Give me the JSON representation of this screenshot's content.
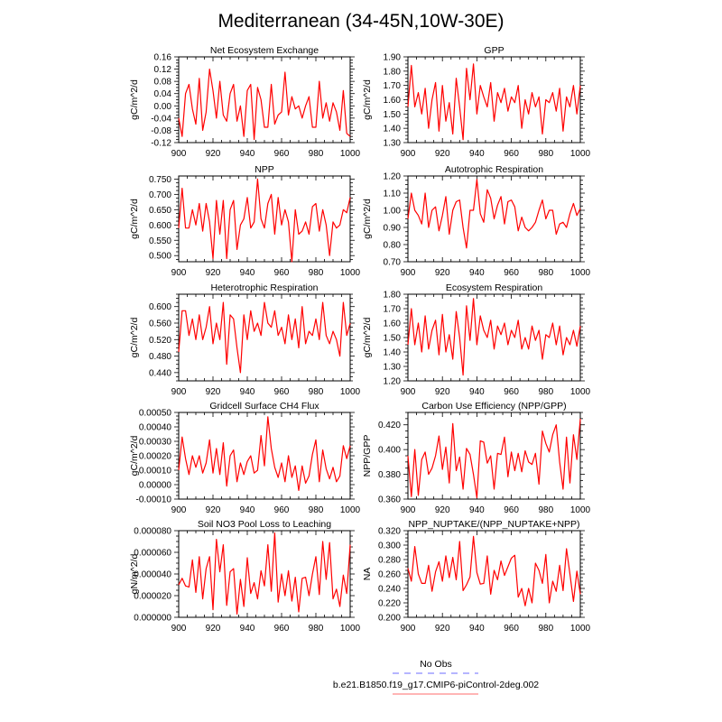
{
  "title": "Mediterranean (34-45N,10W-30E)",
  "legend": {
    "obs_label": "No Obs",
    "obs_color": "#6b6bff",
    "model_label": "b.e21.B1850.f19_g17.CMIP6-piControl-2deg.002",
    "model_color": "#ff0000"
  },
  "chart_data": [
    {
      "type": "line",
      "title": "Net Ecosystem Exchange",
      "ylabel": "gC/m^2/d",
      "xlim": [
        900,
        1000
      ],
      "ylim": [
        -0.12,
        0.16
      ],
      "xticks": [
        "900",
        "920",
        "940",
        "960",
        "980",
        "1000"
      ],
      "yticks": [
        "-0.12",
        "-0.08",
        "-0.04",
        "0.00",
        "0.04",
        "0.08",
        "0.12",
        "0.16"
      ],
      "values": [
        -0.04,
        -0.1,
        0.04,
        0.07,
        -0.01,
        -0.06,
        0.09,
        -0.08,
        -0.02,
        0.12,
        0.05,
        -0.04,
        0.08,
        -0.03,
        -0.05,
        0.04,
        0.07,
        -0.05,
        0.0,
        -0.1,
        0.05,
        0.07,
        -0.11,
        0.06,
        0.02,
        -0.07,
        -0.07,
        0.07,
        -0.06,
        -0.03,
        -0.02,
        0.11,
        -0.03,
        0.03,
        -0.01,
        0.0,
        -0.04,
        0.0,
        0.03,
        -0.07,
        -0.07,
        0.08,
        -0.04,
        0.01,
        -0.05,
        0.01,
        -0.02,
        -0.08,
        0.05,
        -0.09,
        -0.1
      ]
    },
    {
      "type": "line",
      "title": "GPP",
      "ylabel": "gC/m^2/d",
      "xlim": [
        900,
        1000
      ],
      "ylim": [
        1.3,
        1.9
      ],
      "xticks": [
        "900",
        "920",
        "940",
        "960",
        "980",
        "1000"
      ],
      "yticks": [
        "1.30",
        "1.40",
        "1.50",
        "1.60",
        "1.70",
        "1.80",
        "1.90"
      ],
      "values": [
        1.55,
        1.84,
        1.55,
        1.65,
        1.5,
        1.68,
        1.4,
        1.6,
        1.72,
        1.38,
        1.7,
        1.45,
        1.58,
        1.36,
        1.75,
        1.55,
        1.32,
        1.82,
        1.6,
        1.85,
        1.5,
        1.7,
        1.62,
        1.55,
        1.72,
        1.45,
        1.65,
        1.58,
        1.68,
        1.52,
        1.62,
        1.58,
        1.7,
        1.4,
        1.6,
        1.5,
        1.65,
        1.55,
        1.62,
        1.36,
        1.6,
        1.58,
        1.65,
        1.52,
        1.68,
        1.38,
        1.62,
        1.55,
        1.7,
        1.5,
        1.7
      ]
    },
    {
      "type": "line",
      "title": "NPP",
      "ylabel": "gC/m^2/d",
      "xlim": [
        900,
        1000
      ],
      "ylim": [
        0.48,
        0.76
      ],
      "xticks": [
        "900",
        "920",
        "940",
        "960",
        "980",
        "1000"
      ],
      "yticks": [
        "0.500",
        "0.550",
        "0.600",
        "0.650",
        "0.700",
        "0.750"
      ],
      "values": [
        0.59,
        0.72,
        0.59,
        0.59,
        0.65,
        0.6,
        0.67,
        0.58,
        0.67,
        0.61,
        0.49,
        0.68,
        0.57,
        0.68,
        0.49,
        0.65,
        0.68,
        0.52,
        0.6,
        0.62,
        0.69,
        0.59,
        0.61,
        0.75,
        0.62,
        0.59,
        0.67,
        0.7,
        0.57,
        0.69,
        0.6,
        0.65,
        0.61,
        0.48,
        0.65,
        0.57,
        0.58,
        0.61,
        0.57,
        0.66,
        0.67,
        0.58,
        0.65,
        0.6,
        0.5,
        0.61,
        0.59,
        0.6,
        0.65,
        0.64,
        0.69
      ]
    },
    {
      "type": "line",
      "title": "Autotrophic Respiration",
      "ylabel": "gC/m^2/d",
      "xlim": [
        900,
        1000
      ],
      "ylim": [
        0.7,
        1.2
      ],
      "xticks": [
        "900",
        "920",
        "940",
        "960",
        "980",
        "1000"
      ],
      "yticks": [
        "0.70",
        "0.80",
        "0.90",
        "1.00",
        "1.10",
        "1.20"
      ],
      "values": [
        0.95,
        1.1,
        1.0,
        0.97,
        0.92,
        1.1,
        0.9,
        1.0,
        1.02,
        0.88,
        0.97,
        1.08,
        0.86,
        1.0,
        1.05,
        1.06,
        0.9,
        0.78,
        1.0,
        1.0,
        1.18,
        0.98,
        0.93,
        1.12,
        1.07,
        0.95,
        1.03,
        1.08,
        0.92,
        1.05,
        1.06,
        1.02,
        0.88,
        0.96,
        0.9,
        0.88,
        0.9,
        0.93,
        1.0,
        1.06,
        0.95,
        1.0,
        1.0,
        0.86,
        0.92,
        0.93,
        0.9,
        0.98,
        1.04,
        0.97,
        1.01
      ]
    },
    {
      "type": "line",
      "title": "Heterotrophic Respiration",
      "ylabel": "gC/m^2/d",
      "xlim": [
        900,
        1000
      ],
      "ylim": [
        0.42,
        0.63
      ],
      "xticks": [
        "900",
        "920",
        "940",
        "960",
        "980",
        "1000"
      ],
      "yticks": [
        "0.440",
        "0.480",
        "0.520",
        "0.560",
        "0.600"
      ],
      "values": [
        0.49,
        0.59,
        0.59,
        0.53,
        0.57,
        0.52,
        0.58,
        0.52,
        0.55,
        0.6,
        0.51,
        0.56,
        0.52,
        0.61,
        0.46,
        0.58,
        0.57,
        0.5,
        0.44,
        0.58,
        0.52,
        0.59,
        0.54,
        0.56,
        0.53,
        0.61,
        0.56,
        0.55,
        0.59,
        0.53,
        0.55,
        0.51,
        0.58,
        0.52,
        0.57,
        0.5,
        0.6,
        0.51,
        0.54,
        0.53,
        0.57,
        0.52,
        0.61,
        0.53,
        0.51,
        0.54,
        0.52,
        0.48,
        0.61,
        0.53,
        0.56
      ]
    },
    {
      "type": "line",
      "title": "Ecosystem Respiration",
      "ylabel": "gC/m^2/d",
      "xlim": [
        900,
        1000
      ],
      "ylim": [
        1.2,
        1.8
      ],
      "xticks": [
        "900",
        "920",
        "940",
        "960",
        "980",
        "1000"
      ],
      "yticks": [
        "1.20",
        "1.30",
        "1.40",
        "1.50",
        "1.60",
        "1.70",
        "1.80"
      ],
      "values": [
        1.45,
        1.7,
        1.45,
        1.6,
        1.4,
        1.65,
        1.42,
        1.55,
        1.62,
        1.38,
        1.66,
        1.4,
        1.52,
        1.35,
        1.68,
        1.5,
        1.24,
        1.72,
        1.48,
        1.77,
        1.45,
        1.65,
        1.55,
        1.5,
        1.62,
        1.42,
        1.58,
        1.52,
        1.6,
        1.45,
        1.55,
        1.5,
        1.62,
        1.42,
        1.5,
        1.42,
        1.58,
        1.48,
        1.55,
        1.35,
        1.52,
        1.5,
        1.6,
        1.45,
        1.58,
        1.38,
        1.5,
        1.45,
        1.55,
        1.44,
        1.58
      ]
    },
    {
      "type": "line",
      "title": "Gridcell Surface CH4 Flux",
      "ylabel": "gC/m^2/d",
      "xlim": [
        900,
        1000
      ],
      "ylim": [
        -0.0001,
        0.0005
      ],
      "xticks": [
        "900",
        "920",
        "940",
        "960",
        "980",
        "1000"
      ],
      "yticks": [
        "-0.00010",
        "0.00000",
        "0.00010",
        "0.00020",
        "0.00030",
        "0.00040",
        "0.00050"
      ],
      "values": [
        0.0001,
        0.00033,
        0.00018,
        7e-05,
        0.0002,
        0.00012,
        0.0002,
        8e-05,
        0.00015,
        0.00031,
        8e-05,
        0.00025,
        7e-05,
        0.00029,
        -1e-05,
        0.0002,
        0.00024,
        2e-05,
        0.00015,
        7e-05,
        0.00016,
        0.0002,
        8e-05,
        0.0001,
        0.00034,
        0.00013,
        0.00047,
        0.00025,
        0.00012,
        5e-05,
        0.00015,
        2e-05,
        0.0002,
        5e-05,
        0.00013,
        -4e-05,
        0.00013,
        1e-05,
        6e-05,
        0.00021,
        0.00031,
        2e-05,
        0.00024,
        0.00011,
        4e-05,
        0.00012,
        2e-05,
        6e-05,
        0.00027,
        0.00018,
        0.00027
      ]
    },
    {
      "type": "line",
      "title": "Carbon Use Efficiency (NPP/GPP)",
      "ylabel": "NPP/GPP",
      "xlim": [
        900,
        1000
      ],
      "ylim": [
        0.36,
        0.43
      ],
      "xticks": [
        "900",
        "920",
        "940",
        "960",
        "980",
        "1000"
      ],
      "yticks": [
        "0.360",
        "0.380",
        "0.400",
        "0.420"
      ],
      "values": [
        0.395,
        0.362,
        0.4,
        0.363,
        0.392,
        0.398,
        0.38,
        0.385,
        0.395,
        0.411,
        0.384,
        0.402,
        0.373,
        0.421,
        0.383,
        0.394,
        0.368,
        0.401,
        0.396,
        0.38,
        0.361,
        0.407,
        0.406,
        0.389,
        0.395,
        0.368,
        0.397,
        0.396,
        0.41,
        0.378,
        0.398,
        0.383,
        0.397,
        0.382,
        0.399,
        0.39,
        0.388,
        0.397,
        0.372,
        0.415,
        0.405,
        0.398,
        0.412,
        0.42,
        0.39,
        0.368,
        0.41,
        0.373,
        0.412,
        0.392,
        0.425
      ]
    },
    {
      "type": "line",
      "title": "Soil NO3 Pool Loss to Leaching",
      "ylabel": "gN/m^2/d",
      "xlim": [
        900,
        1000
      ],
      "ylim": [
        0,
        8e-05
      ],
      "xticks": [
        "900",
        "920",
        "940",
        "960",
        "980",
        "1000"
      ],
      "yticks": [
        "0.000000",
        "0.000020",
        "0.000040",
        "0.000060",
        "0.000080"
      ],
      "values": [
        3e-05,
        3.6e-05,
        2.9e-05,
        2.8e-05,
        5.3e-05,
        2.3e-05,
        5.6e-05,
        1.7e-05,
        4.5e-05,
        5.6e-05,
        7e-06,
        7.2e-05,
        4.2e-05,
        6.7e-05,
        1.1e-05,
        4.2e-05,
        4.5e-05,
        3e-06,
        3.5e-05,
        1e-05,
        5.5e-05,
        2.2e-05,
        3.2e-05,
        1.7e-05,
        4.3e-05,
        2.9e-05,
        6.7e-05,
        2.4e-05,
        7.8e-05,
        1.4e-05,
        4e-05,
        2e-05,
        4.3e-05,
        1.5e-05,
        3.7e-05,
        5e-06,
        3.6e-05,
        3.7e-05,
        2e-05,
        4e-05,
        5.6e-05,
        2.1e-05,
        7e-05,
        3.5e-05,
        6.9e-05,
        1.7e-05,
        2.6e-05,
        1e-05,
        3.9e-05,
        2.2e-05,
        6.7e-05
      ]
    },
    {
      "type": "line",
      "title": "NPP_NUPTAKE/(NPP_NUPTAKE+NPP)",
      "ylabel": "NA",
      "xlim": [
        900,
        1000
      ],
      "ylim": [
        0.2,
        0.32
      ],
      "xticks": [
        "900",
        "920",
        "940",
        "960",
        "980",
        "1000"
      ],
      "yticks": [
        "0.200",
        "0.220",
        "0.240",
        "0.260",
        "0.280",
        "0.300",
        "0.320"
      ],
      "values": [
        0.268,
        0.25,
        0.298,
        0.26,
        0.247,
        0.247,
        0.272,
        0.236,
        0.263,
        0.277,
        0.25,
        0.285,
        0.255,
        0.283,
        0.252,
        0.305,
        0.237,
        0.245,
        0.256,
        0.312,
        0.262,
        0.246,
        0.247,
        0.285,
        0.232,
        0.265,
        0.252,
        0.278,
        0.258,
        0.27,
        0.282,
        0.286,
        0.228,
        0.24,
        0.216,
        0.24,
        0.22,
        0.275,
        0.265,
        0.247,
        0.287,
        0.22,
        0.25,
        0.236,
        0.272,
        0.237,
        0.295,
        0.26,
        0.222,
        0.264,
        0.232
      ]
    }
  ]
}
